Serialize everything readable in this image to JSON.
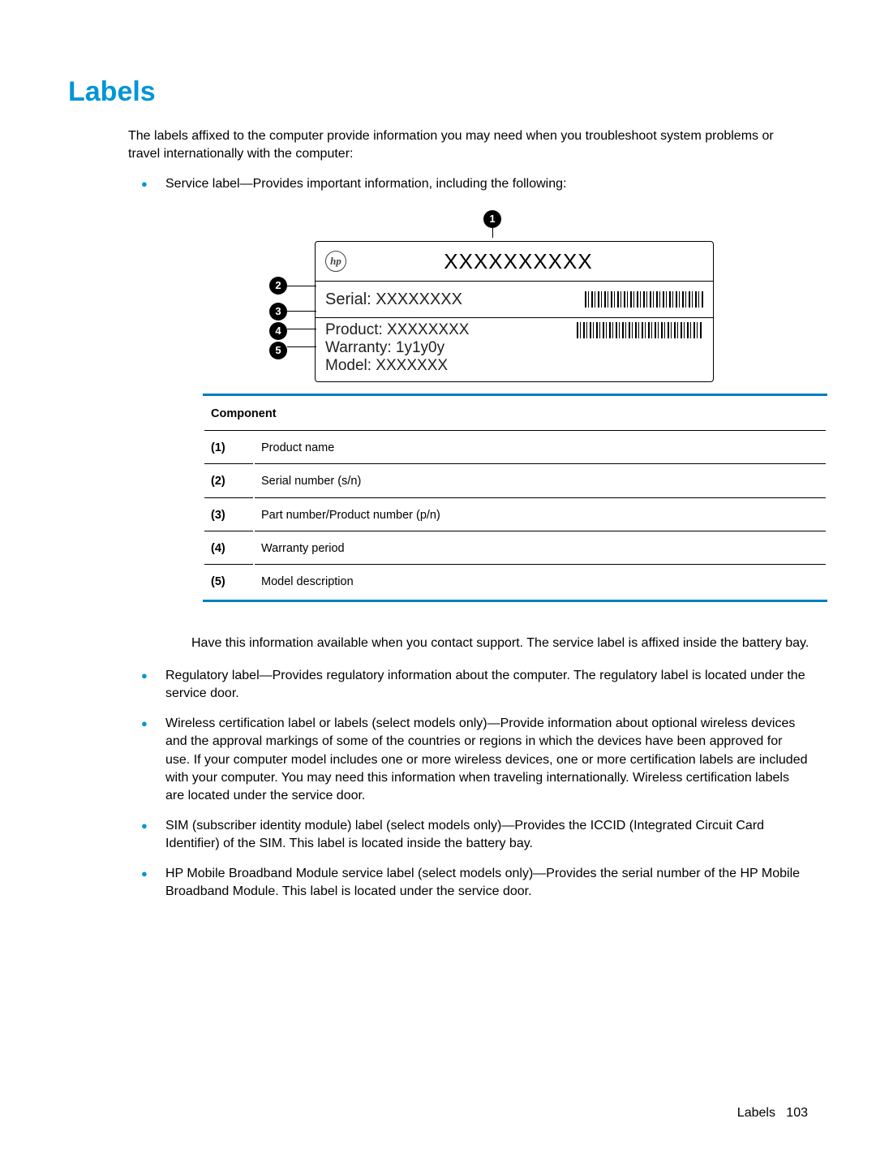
{
  "heading": {
    "text": "Labels",
    "color": "#0096d6"
  },
  "intro": "The labels affixed to the computer provide information you may need when you troubleshoot system problems or travel internationally with the computer:",
  "bullets": {
    "color": "#0096d6",
    "service_label": "Service label—Provides important information, including the following:",
    "post_note": "Have this information available when you contact support. The service label is affixed inside the battery bay.",
    "regulatory": "Regulatory label—Provides regulatory information about the computer. The regulatory label is located under the service door.",
    "wireless": "Wireless certification label or labels (select models only)—Provide information about optional wireless devices and the approval markings of some of the countries or regions in which the devices have been approved for use. If your computer model includes one or more wireless devices, one or more certification labels are included with your computer. You may need this information when traveling internationally. Wireless certification labels are located under the service door.",
    "sim": "SIM (subscriber identity module) label (select models only)—Provides the ICCID (Integrated Circuit Card Identifier) of the SIM. This label is located inside the battery bay.",
    "broadband": "HP Mobile Broadband Module service label (select models only)—Provides the serial number of the HP Mobile Broadband Module. This label is located under the service door."
  },
  "diagram": {
    "logo_text": "hp",
    "product_name": "XXXXXXXXXX",
    "serial_label": "Serial:  XXXXXXXX",
    "product_label": "Product: XXXXXXXX",
    "warranty_label": "Warranty: 1y1y0y",
    "model_label": "Model: XXXXXXX",
    "callouts": [
      "1",
      "2",
      "3",
      "4",
      "5"
    ]
  },
  "table": {
    "header": "Component",
    "rows": [
      {
        "num": "(1)",
        "desc": "Product name"
      },
      {
        "num": "(2)",
        "desc": "Serial number (s/n)"
      },
      {
        "num": "(3)",
        "desc": "Part number/Product number (p/n)"
      },
      {
        "num": "(4)",
        "desc": "Warranty period"
      },
      {
        "num": "(5)",
        "desc": "Model description"
      }
    ]
  },
  "footer": {
    "label": "Labels",
    "page": "103"
  }
}
